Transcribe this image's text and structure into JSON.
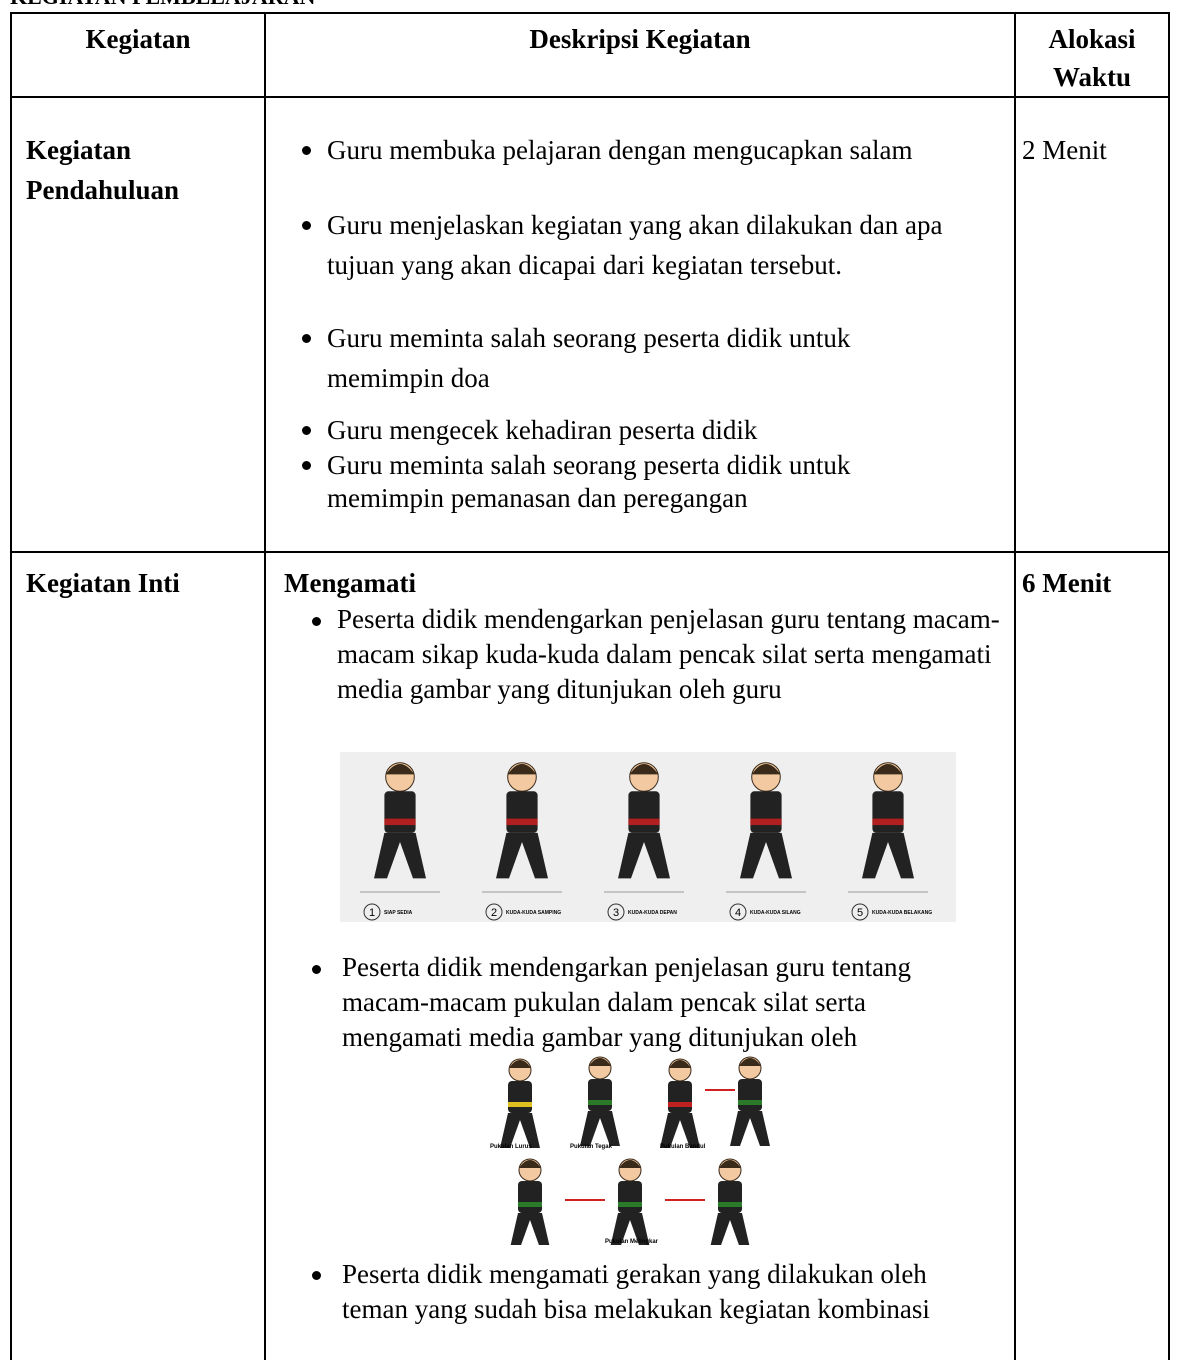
{
  "heading": "KEGIATAN PEMBELAJARAN",
  "table": {
    "header": [
      "Kegiatan",
      "Deskripsi Kegiatan",
      "Alokasi Waktu"
    ],
    "rows": [
      {
        "activity": "Kegiatan Pendahuluan",
        "items": [
          "Guru membuka pelajaran dengan mengucapkan salam",
          "Guru menjelaskan kegiatan yang akan dilakukan dan apa tujuan yang akan dicapai dari kegiatan tersebut.",
          "Guru meminta salah seorang peserta didik untuk memimpin doa",
          "Guru mengecek kehadiran peserta didik",
          "Guru meminta salah seorang peserta didik untuk memimpin pemanasan dan peregangan"
        ],
        "time": "2 Menit"
      },
      {
        "activity": "Kegiatan Inti",
        "section": "Mengamati",
        "items": [
          "Peserta didik mendengarkan penjelasan guru tentang macam-macam sikap kuda-kuda dalam pencak silat serta mengamati media gambar yang ditunjukan oleh guru",
          "Peserta didik mendengarkan penjelasan guru tentang macam-macam pukulan dalam pencak silat serta mengamati media gambar yang ditunjukan oleh",
          "Peserta didik mengamati gerakan yang dilakukan oleh teman yang sudah bisa melakukan kegiatan kombinasi"
        ],
        "figure_stances": [
          {
            "number": "1",
            "label": "SIAP SEDIA"
          },
          {
            "number": "2",
            "label": "KUDA-KUDA SAMPING"
          },
          {
            "number": "3",
            "label": "KUDA-KUDA DEPAN"
          },
          {
            "number": "4",
            "label": "KUDA-KUDA SILANG"
          },
          {
            "number": "5",
            "label": "KUDA-KUDA BELAKANG"
          }
        ],
        "figure_punches": [
          "Pukulan Lurus",
          "Pukulan Tegak",
          "Pukulan Bandul",
          "Pukulan Melingkar"
        ],
        "time": "6 Menit"
      }
    ]
  }
}
